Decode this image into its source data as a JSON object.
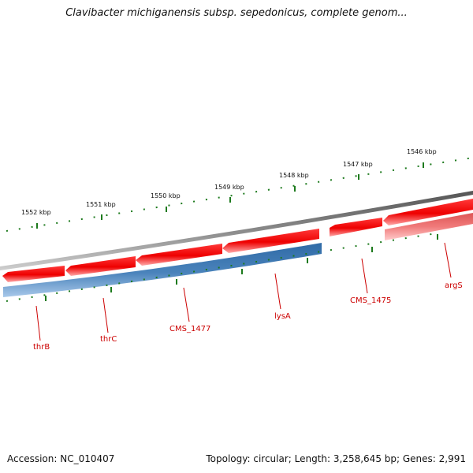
{
  "title": "Clavibacter michiganensis subsp. sepedonicus, complete genom...",
  "footer": {
    "accession": "Accession: NC_010407",
    "summary": "Topology: circular; Length: 3,258,645 bp; Genes: 2,991"
  },
  "colors": {
    "backbone": "#777777",
    "forward_gene": "#ee1111",
    "forward_gene_light": "#ff8888",
    "reverse_gene": "#3d78b0",
    "tick": "#1d7a1d",
    "label_text": "#cc0000"
  },
  "scale": {
    "labels": [
      "1552 kbp",
      "1551 kbp",
      "1550 kbp",
      "1549 kbp",
      "1548 kbp",
      "1547 kbp",
      "1546 kbp"
    ]
  },
  "genes": [
    {
      "name": "thrB",
      "strand": "reverse"
    },
    {
      "name": "thrC",
      "strand": "reverse"
    },
    {
      "name": "CMS_1477",
      "strand": "reverse"
    },
    {
      "name": "lysA",
      "strand": "reverse"
    },
    {
      "name": "CMS_1475",
      "strand": "forward"
    },
    {
      "name": "argS",
      "strand": "forward"
    }
  ]
}
